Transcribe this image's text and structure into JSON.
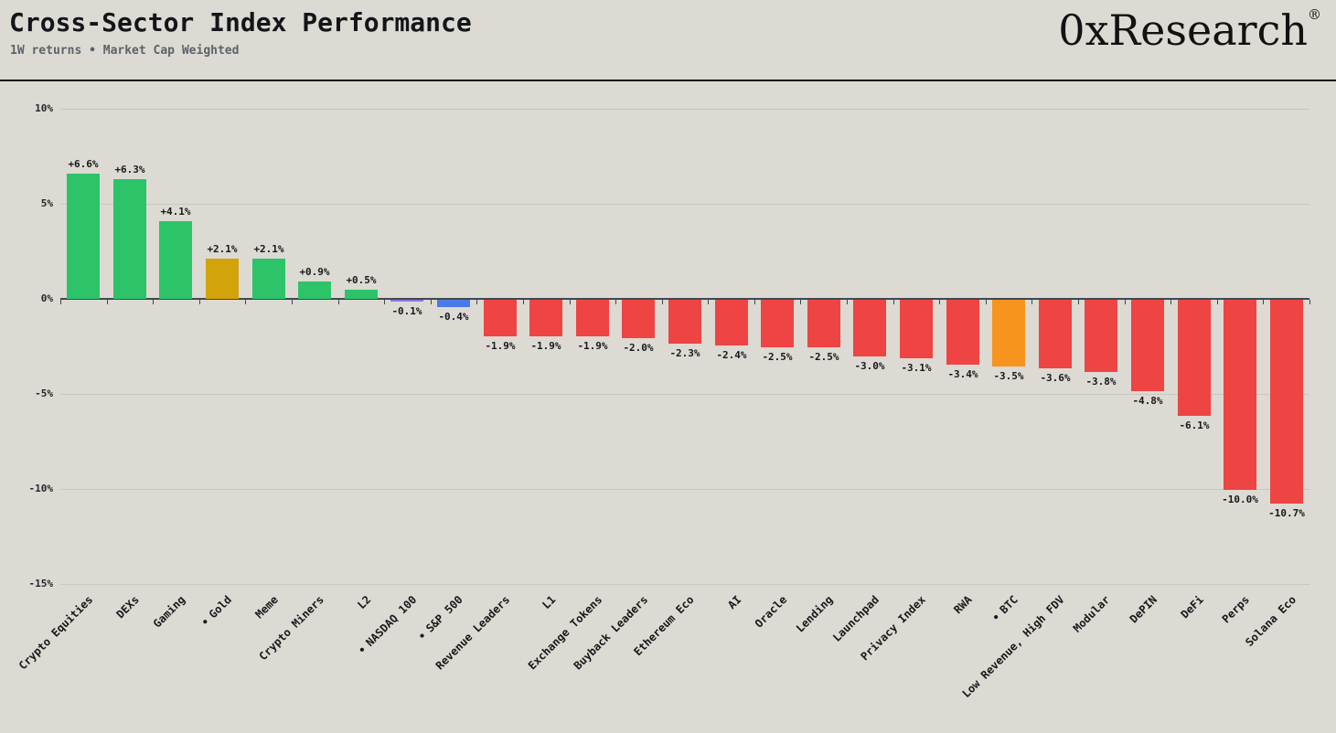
{
  "header": {
    "title": "Cross-Sector Index Performance",
    "subtitle": "1W returns • Market Cap Weighted",
    "logo_text": "0xResearch",
    "logo_mark": "®"
  },
  "chart_data": {
    "type": "bar",
    "title": "Cross-Sector Index Performance",
    "subtitle": "1W returns • Market Cap Weighted",
    "xlabel": "",
    "ylabel": "",
    "unit": "%",
    "grid": true,
    "legend": "none",
    "ylim": [
      -15.8,
      10.5
    ],
    "y_ticks": [
      {
        "value": 10,
        "label": "10%"
      },
      {
        "value": 5,
        "label": "5%"
      },
      {
        "value": 0,
        "label": "0%"
      },
      {
        "value": -5,
        "label": "-5%"
      },
      {
        "value": -10,
        "label": "-10%"
      },
      {
        "value": -15,
        "label": "-15%"
      }
    ],
    "bars": [
      {
        "category": "Crypto Equities",
        "value": 6.6,
        "label": "+6.6%",
        "color": "green",
        "benchmark": false
      },
      {
        "category": "DEXs",
        "value": 6.3,
        "label": "+6.3%",
        "color": "green",
        "benchmark": false
      },
      {
        "category": "Gaming",
        "value": 4.1,
        "label": "+4.1%",
        "color": "green",
        "benchmark": false
      },
      {
        "category": "Gold",
        "value": 2.1,
        "label": "+2.1%",
        "color": "gold",
        "benchmark": true
      },
      {
        "category": "Meme",
        "value": 2.1,
        "label": "+2.1%",
        "color": "green",
        "benchmark": false
      },
      {
        "category": "Crypto Miners",
        "value": 0.9,
        "label": "+0.9%",
        "color": "green",
        "benchmark": false
      },
      {
        "category": "L2",
        "value": 0.5,
        "label": "+0.5%",
        "color": "green",
        "benchmark": false
      },
      {
        "category": "NASDAQ 100",
        "value": -0.1,
        "label": "-0.1%",
        "color": "purple",
        "benchmark": true
      },
      {
        "category": "S&P 500",
        "value": -0.4,
        "label": "-0.4%",
        "color": "blue",
        "benchmark": true
      },
      {
        "category": "Revenue Leaders",
        "value": -1.9,
        "label": "-1.9%",
        "color": "red",
        "benchmark": false
      },
      {
        "category": "L1",
        "value": -1.9,
        "label": "-1.9%",
        "color": "red",
        "benchmark": false
      },
      {
        "category": "Exchange Tokens",
        "value": -1.9,
        "label": "-1.9%",
        "color": "red",
        "benchmark": false
      },
      {
        "category": "Buyback Leaders",
        "value": -2.0,
        "label": "-2.0%",
        "color": "red",
        "benchmark": false
      },
      {
        "category": "Ethereum Eco",
        "value": -2.3,
        "label": "-2.3%",
        "color": "red",
        "benchmark": false
      },
      {
        "category": "AI",
        "value": -2.4,
        "label": "-2.4%",
        "color": "red",
        "benchmark": false
      },
      {
        "category": "Oracle",
        "value": -2.5,
        "label": "-2.5%",
        "color": "red",
        "benchmark": false
      },
      {
        "category": "Lending",
        "value": -2.5,
        "label": "-2.5%",
        "color": "red",
        "benchmark": false
      },
      {
        "category": "Launchpad",
        "value": -3.0,
        "label": "-3.0%",
        "color": "red",
        "benchmark": false
      },
      {
        "category": "Privacy Index",
        "value": -3.1,
        "label": "-3.1%",
        "color": "red",
        "benchmark": false
      },
      {
        "category": "RWA",
        "value": -3.4,
        "label": "-3.4%",
        "color": "red",
        "benchmark": false
      },
      {
        "category": "BTC",
        "value": -3.5,
        "label": "-3.5%",
        "color": "orange",
        "benchmark": true
      },
      {
        "category": "Low Revenue, High FDV",
        "value": -3.6,
        "label": "-3.6%",
        "color": "red",
        "benchmark": false
      },
      {
        "category": "Modular",
        "value": -3.8,
        "label": "-3.8%",
        "color": "red",
        "benchmark": false
      },
      {
        "category": "DePIN",
        "value": -4.8,
        "label": "-4.8%",
        "color": "red",
        "benchmark": false
      },
      {
        "category": "DeFi",
        "value": -6.1,
        "label": "-6.1%",
        "color": "red",
        "benchmark": false
      },
      {
        "category": "Perps",
        "value": -10.0,
        "label": "-10.0%",
        "color": "red",
        "benchmark": false
      },
      {
        "category": "Solana Eco",
        "value": -10.7,
        "label": "-10.7%",
        "color": "red",
        "benchmark": false
      }
    ],
    "palette": {
      "green": "#2dc368",
      "red": "#ee4444",
      "gold": "#d3a30c",
      "purple": "#9176e3",
      "blue": "#4b7ae5",
      "orange": "#f7941e",
      "background": "#dcdad3",
      "axis": "#3e4850",
      "gridline": "#cac7bf"
    },
    "benchmark_bullet": "•"
  }
}
